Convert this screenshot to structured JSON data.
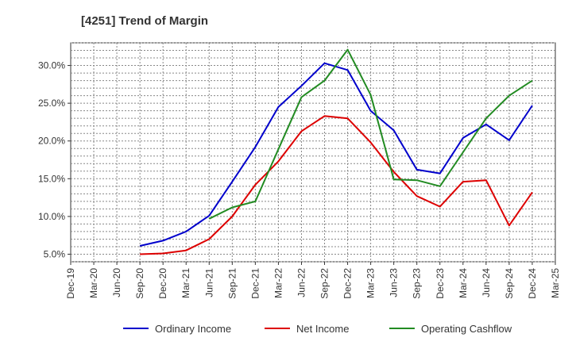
{
  "chart_data": {
    "type": "line",
    "title": "[4251]  Trend of Margin",
    "x_ticks": [
      "Dec-19",
      "Mar-20",
      "Jun-20",
      "Sep-20",
      "Dec-20",
      "Mar-21",
      "Jun-21",
      "Sep-21",
      "Dec-21",
      "Mar-22",
      "Jun-22",
      "Sep-22",
      "Dec-22",
      "Mar-23",
      "Jun-23",
      "Sep-23",
      "Dec-23",
      "Mar-24",
      "Jun-24",
      "Sep-24",
      "Dec-24",
      "Mar-25"
    ],
    "y_ticks": [
      "5.0%",
      "10.0%",
      "15.0%",
      "20.0%",
      "25.0%",
      "30.0%"
    ],
    "ylim": [
      4.0,
      33.0
    ],
    "grid": true,
    "legend_position": "bottom",
    "series": [
      {
        "name": "Ordinary Income",
        "color": "#0000cc",
        "x": [
          "Sep-20",
          "Dec-20",
          "Mar-21",
          "Jun-21",
          "Sep-21",
          "Dec-21",
          "Mar-22",
          "Jun-22",
          "Sep-22",
          "Dec-22",
          "Mar-23",
          "Jun-23",
          "Sep-23",
          "Dec-23",
          "Mar-24",
          "Jun-24",
          "Sep-24",
          "Dec-24"
        ],
        "values": [
          6.1,
          6.8,
          8.0,
          10.1,
          14.6,
          19.2,
          24.5,
          27.3,
          30.3,
          29.4,
          24.0,
          21.4,
          16.2,
          15.7,
          20.4,
          22.2,
          20.1,
          24.7
        ]
      },
      {
        "name": "Net Income",
        "color": "#dd0000",
        "x": [
          "Sep-20",
          "Dec-20",
          "Mar-21",
          "Jun-21",
          "Sep-21",
          "Dec-21",
          "Mar-22",
          "Jun-22",
          "Sep-22",
          "Dec-22",
          "Mar-23",
          "Jun-23",
          "Sep-23",
          "Dec-23",
          "Mar-24",
          "Jun-24",
          "Sep-24",
          "Dec-24"
        ],
        "values": [
          5.0,
          5.1,
          5.5,
          7.0,
          10.0,
          14.2,
          17.3,
          21.3,
          23.3,
          23.0,
          19.8,
          15.9,
          12.7,
          11.3,
          14.6,
          14.8,
          8.8,
          13.2
        ]
      },
      {
        "name": "Operating Cashflow",
        "color": "#228b22",
        "x": [
          "Jun-21",
          "Sep-21",
          "Dec-21",
          "Mar-22",
          "Jun-22",
          "Sep-22",
          "Dec-22",
          "Mar-23",
          "Jun-23",
          "Sep-23",
          "Dec-23",
          "Mar-24",
          "Jun-24",
          "Sep-24",
          "Dec-24"
        ],
        "values": [
          9.7,
          11.2,
          12.0,
          18.9,
          25.8,
          28.0,
          32.1,
          26.1,
          14.9,
          14.8,
          14.0,
          18.5,
          23.0,
          26.0,
          28.0
        ]
      }
    ]
  }
}
